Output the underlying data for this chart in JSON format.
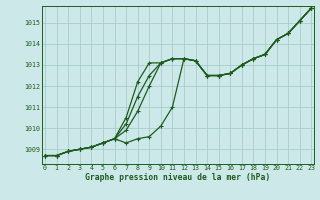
{
  "xlabel": "Graphe pression niveau de la mer (hPa)",
  "x_ticks": [
    0,
    1,
    2,
    3,
    4,
    5,
    6,
    7,
    8,
    9,
    10,
    11,
    12,
    13,
    14,
    15,
    16,
    17,
    18,
    19,
    20,
    21,
    22,
    23
  ],
  "ylim": [
    1008.3,
    1015.8
  ],
  "xlim": [
    -0.3,
    23.2
  ],
  "yticks": [
    1009,
    1010,
    1011,
    1012,
    1013,
    1014,
    1015
  ],
  "bg_color": "#cce8e8",
  "grid_color": "#a0c8c8",
  "line_color": "#1e5c1e",
  "series1": [
    1008.7,
    1008.7,
    1008.9,
    1009.0,
    1009.1,
    1009.3,
    1009.5,
    1009.3,
    1009.5,
    1009.6,
    1010.1,
    1011.0,
    1013.3,
    1013.2,
    1012.5,
    1012.5,
    1012.6,
    1013.0,
    1013.3,
    1013.5,
    1014.2,
    1014.5,
    1015.1,
    1015.7
  ],
  "series2": [
    1008.7,
    1008.7,
    1008.9,
    1009.0,
    1009.1,
    1009.3,
    1009.5,
    1009.9,
    1010.8,
    1012.0,
    1013.1,
    1013.3,
    1013.3,
    1013.2,
    1012.5,
    1012.5,
    1012.6,
    1013.0,
    1013.3,
    1013.5,
    1014.2,
    1014.5,
    1015.1,
    1015.7
  ],
  "series3": [
    1008.7,
    1008.7,
    1008.9,
    1009.0,
    1009.1,
    1009.3,
    1009.5,
    1010.2,
    1011.5,
    1012.5,
    1013.1,
    1013.3,
    1013.3,
    1013.2,
    1012.5,
    1012.5,
    1012.6,
    1013.0,
    1013.3,
    1013.5,
    1014.2,
    1014.5,
    1015.1,
    1015.7
  ],
  "series4": [
    1008.7,
    1008.7,
    1008.9,
    1009.0,
    1009.1,
    1009.3,
    1009.5,
    1010.5,
    1012.2,
    1013.1,
    1013.1,
    1013.3,
    1013.3,
    1013.2,
    1012.5,
    1012.5,
    1012.6,
    1013.0,
    1013.3,
    1013.5,
    1014.2,
    1014.5,
    1015.1,
    1015.7
  ],
  "marker": "+",
  "markersize": 2.5,
  "linewidth": 0.9,
  "tick_fontsize": 4.8,
  "xlabel_fontsize": 5.8
}
